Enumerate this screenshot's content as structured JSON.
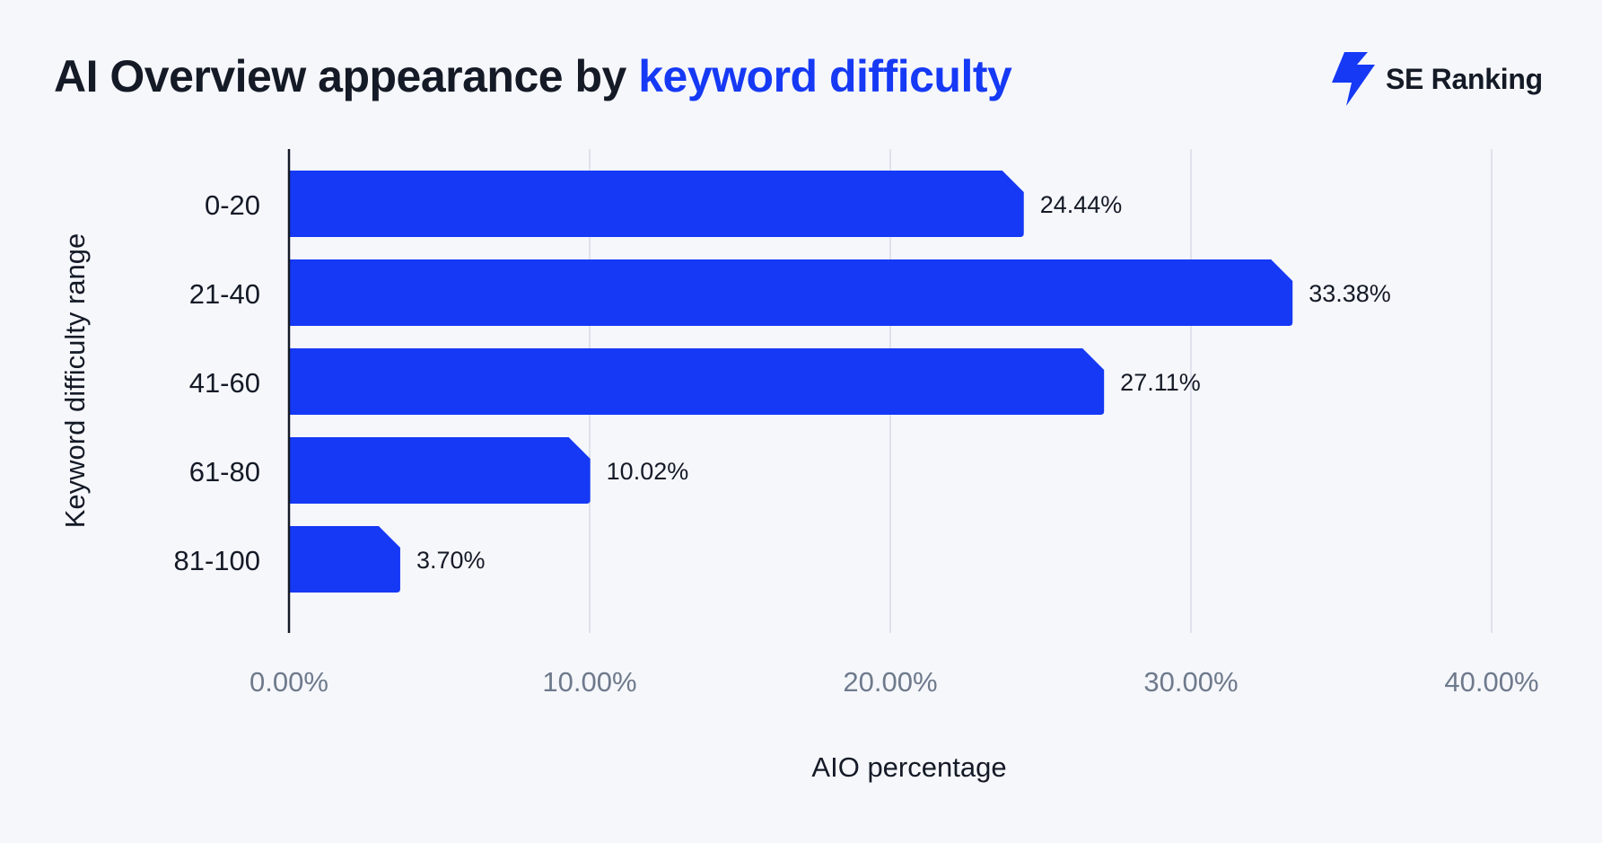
{
  "title": {
    "main": "AI Overview appearance by ",
    "accent": "keyword difficulty"
  },
  "brand": {
    "name": "SE Ranking",
    "icon": "se-ranking-logo-icon"
  },
  "colors": {
    "bar": "#1539f5",
    "accent": "#1539f5",
    "text": "#141a26",
    "tick": "#6e7a8c",
    "grid": "#dfe2ec",
    "background": "#f6f7fb"
  },
  "chart_data": {
    "type": "bar",
    "orientation": "horizontal",
    "categories": [
      "0-20",
      "21-40",
      "41-60",
      "61-80",
      "81-100"
    ],
    "values": [
      24.44,
      33.38,
      27.11,
      10.02,
      3.7
    ],
    "data_labels": [
      "24.44%",
      "33.38%",
      "27.11%",
      "10.02%",
      "3.70%"
    ],
    "xlabel": "AIO percentage",
    "ylabel": "Keyword difficulty range",
    "xlim": [
      0,
      40
    ],
    "xticks": [
      0,
      10,
      20,
      30,
      40
    ],
    "xtick_labels": [
      "0.00%",
      "10.00%",
      "20.00%",
      "30.00%",
      "40.00%"
    ],
    "grid": "vertical",
    "legend": "none"
  }
}
